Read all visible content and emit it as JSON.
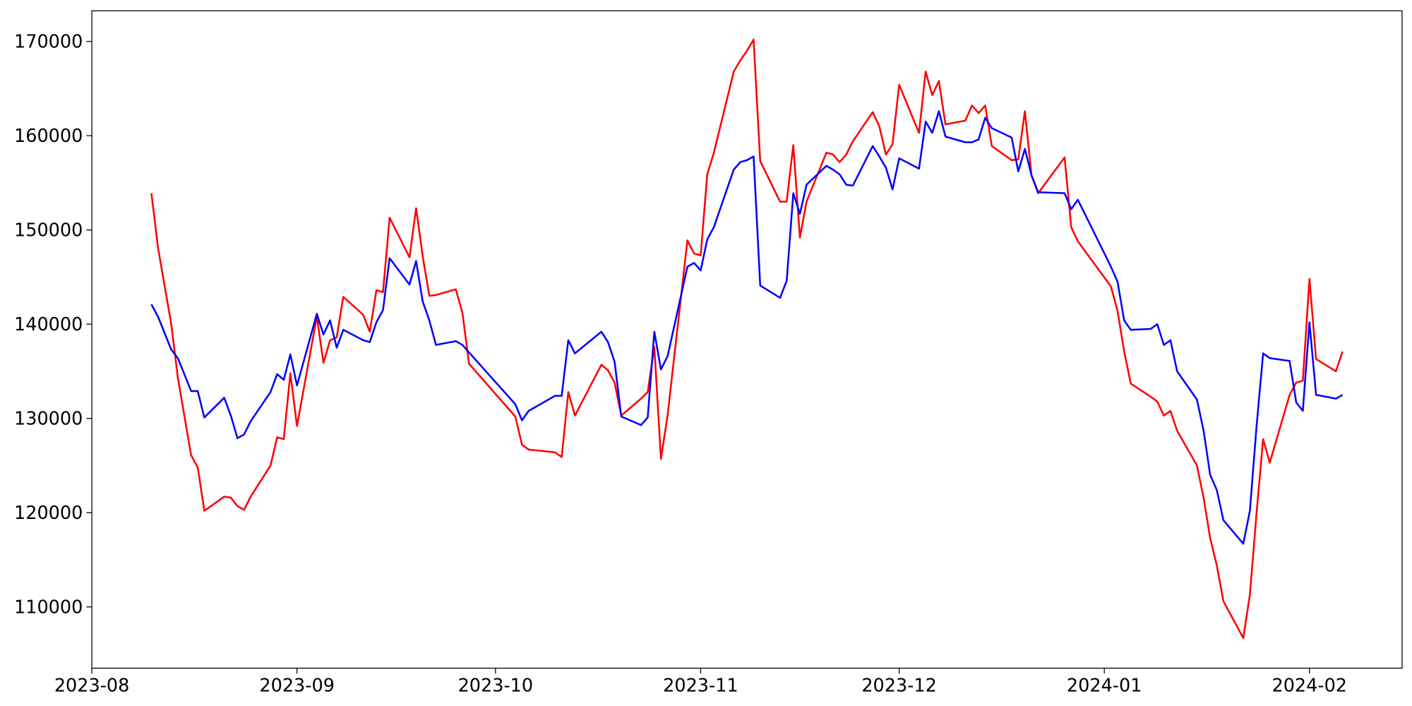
{
  "chart_data": {
    "type": "line",
    "x": [
      9,
      10,
      12,
      13,
      15,
      16,
      17,
      20,
      21,
      22,
      23,
      24,
      27,
      28,
      29,
      30,
      31,
      34,
      35,
      36,
      37,
      38,
      41,
      42,
      43,
      44,
      45,
      48,
      49,
      50,
      51,
      52,
      55,
      56,
      57,
      64,
      65,
      66,
      70,
      71,
      72,
      73,
      77,
      78,
      79,
      80,
      83,
      84,
      85,
      86,
      87,
      90,
      91,
      92,
      93,
      94,
      97,
      98,
      99,
      100,
      101,
      104,
      105,
      106,
      107,
      108,
      111,
      112,
      113,
      114,
      115,
      118,
      119,
      120,
      121,
      122,
      125,
      126,
      127,
      128,
      129,
      132,
      133,
      134,
      135,
      136,
      139,
      140,
      141,
      142,
      143,
      147,
      148,
      149,
      154,
      155,
      156,
      157,
      160,
      161,
      162,
      163,
      164,
      167,
      168,
      169,
      170,
      171,
      174,
      175,
      176,
      177,
      178,
      181,
      182,
      183,
      184,
      185,
      188,
      189
    ],
    "series": [
      {
        "color": "#ff0000",
        "values": [
          153900,
          148100,
          140000,
          134300,
          126100,
          124800,
          120200,
          121700,
          121600,
          120700,
          120300,
          121700,
          125000,
          128000,
          127800,
          134800,
          129200,
          140800,
          135900,
          138300,
          138600,
          142900,
          141000,
          139200,
          143600,
          143400,
          151300,
          147100,
          152300,
          147200,
          143000,
          143100,
          143700,
          141200,
          135800,
          130200,
          127200,
          126700,
          126400,
          125900,
          132800,
          130300,
          135700,
          135100,
          133800,
          130300,
          132100,
          132800,
          137600,
          125700,
          130300,
          148900,
          147500,
          147300,
          155900,
          158200,
          166800,
          168000,
          169000,
          170200,
          157300,
          153000,
          153000,
          159000,
          149200,
          153000,
          158200,
          158000,
          157200,
          158000,
          159400,
          162500,
          161000,
          158000,
          159100,
          165400,
          160300,
          166800,
          164300,
          165800,
          161200,
          161600,
          163200,
          162400,
          163200,
          158900,
          157400,
          157500,
          162600,
          155800,
          153900,
          157700,
          150300,
          148800,
          144000,
          141400,
          137100,
          133700,
          132300,
          131800,
          130300,
          130800,
          128700,
          125000,
          121600,
          117300,
          114400,
          110600,
          106700,
          111300,
          119900,
          127800,
          125300,
          132500,
          133800,
          134000,
          144800,
          136300,
          135000,
          137100
        ]
      },
      {
        "color": "#0000ff",
        "values": [
          142100,
          140800,
          137300,
          136400,
          132900,
          132900,
          130100,
          132200,
          130300,
          127900,
          128300,
          129700,
          132800,
          134700,
          134100,
          136800,
          133500,
          141100,
          138900,
          140400,
          137500,
          139400,
          138300,
          138100,
          140200,
          141500,
          147000,
          144200,
          146700,
          142400,
          140400,
          137800,
          138200,
          137800,
          137000,
          131500,
          129800,
          130800,
          132400,
          132400,
          138300,
          136900,
          139200,
          138100,
          136000,
          130200,
          129300,
          130100,
          139200,
          135200,
          136600,
          146100,
          146500,
          145700,
          149000,
          150300,
          156400,
          157200,
          157400,
          157800,
          144100,
          142800,
          144600,
          153900,
          151700,
          154800,
          156800,
          156400,
          155900,
          154800,
          154700,
          158900,
          157800,
          156600,
          154300,
          157600,
          156500,
          161500,
          160300,
          162600,
          159900,
          159300,
          159300,
          159600,
          161900,
          160800,
          159800,
          156200,
          158600,
          155800,
          154000,
          153900,
          152200,
          153200,
          146100,
          144500,
          140400,
          139400,
          139500,
          140000,
          137800,
          138300,
          135000,
          132000,
          128700,
          124000,
          122400,
          119200,
          116700,
          120200,
          129100,
          136900,
          136400,
          136100,
          131700,
          130800,
          140200,
          132500,
          132100,
          132500
        ]
      }
    ],
    "xlim": [
      0,
      198
    ],
    "xticks": [
      {
        "value": 0,
        "label": "2023-08"
      },
      {
        "value": 31,
        "label": "2023-09"
      },
      {
        "value": 61,
        "label": "2023-10"
      },
      {
        "value": 92,
        "label": "2023-11"
      },
      {
        "value": 122,
        "label": "2023-12"
      },
      {
        "value": 153,
        "label": "2024-01"
      },
      {
        "value": 184,
        "label": "2024-02"
      }
    ],
    "ylim": [
      103500,
      173250
    ],
    "yticks": [
      110000,
      120000,
      130000,
      140000,
      150000,
      160000,
      170000
    ],
    "grid": false
  }
}
